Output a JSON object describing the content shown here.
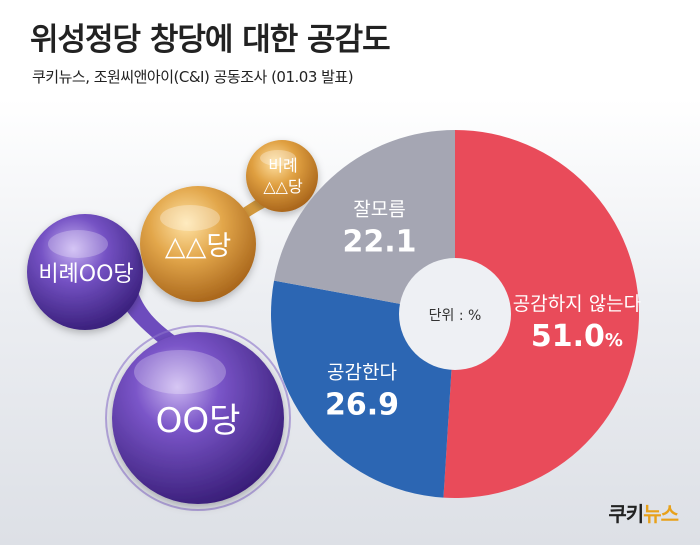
{
  "title": "위성정당 창당에 대한 공감도",
  "subtitle": "쿠키뉴스, 조원씨앤아이(C&I) 공동조사 (01.03 발표)",
  "brand": {
    "main": "쿠키",
    "accent": "뉴스"
  },
  "bubbles": {
    "party_oo": "OO당",
    "proportional_oo": "비례OO당",
    "party_tt": "△△당",
    "proportional_tt_line1": "비례",
    "proportional_tt_line2": "△△당"
  },
  "chart_data": {
    "type": "pie",
    "center_label": "단위 : %",
    "slices": [
      {
        "label": "공감하지 않는다",
        "value": 51.0,
        "display": "51.0",
        "suffix": "%",
        "color": "#e94b5a"
      },
      {
        "label": "공감한다",
        "value": 26.9,
        "display": "26.9",
        "suffix": "",
        "color": "#2c66b3"
      },
      {
        "label": "잘모름",
        "value": 22.1,
        "display": "22.1",
        "suffix": "",
        "color": "#a5a6b3"
      }
    ]
  }
}
